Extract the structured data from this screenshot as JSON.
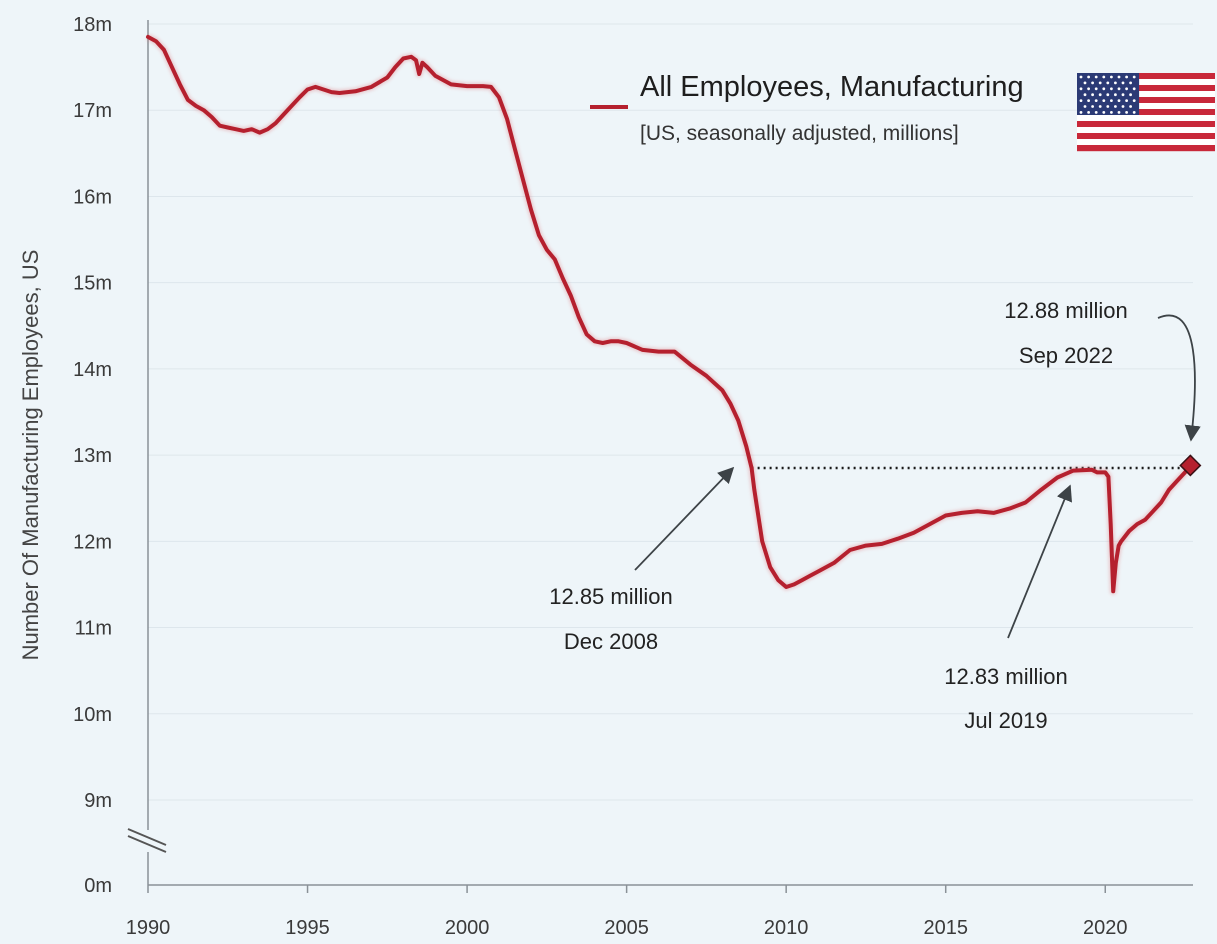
{
  "chart_data": {
    "type": "line",
    "title": "",
    "xlabel": "",
    "ylabel": "Number Of Manufacturing Employees, US",
    "xlim": [
      1990,
      2022.75
    ],
    "ylim": [
      0,
      18
    ],
    "axis_break": "between 0m and 9m",
    "y_ticks": [
      {
        "value": 0,
        "label": "0m"
      },
      {
        "value": 9,
        "label": "9m"
      },
      {
        "value": 10,
        "label": "10m"
      },
      {
        "value": 11,
        "label": "11m"
      },
      {
        "value": 12,
        "label": "12m"
      },
      {
        "value": 13,
        "label": "13m"
      },
      {
        "value": 14,
        "label": "14m"
      },
      {
        "value": 15,
        "label": "15m"
      },
      {
        "value": 16,
        "label": "16m"
      },
      {
        "value": 17,
        "label": "17m"
      },
      {
        "value": 18,
        "label": "18m"
      }
    ],
    "x_ticks": [
      {
        "value": 1990,
        "label": "1990"
      },
      {
        "value": 1995,
        "label": "1995"
      },
      {
        "value": 2000,
        "label": "2000"
      },
      {
        "value": 2005,
        "label": "2005"
      },
      {
        "value": 2010,
        "label": "2010"
      },
      {
        "value": 2015,
        "label": "2015"
      },
      {
        "value": 2020,
        "label": "2020"
      }
    ],
    "grid": "horizontal",
    "legend": {
      "placement": "top-right",
      "title": "All Employees, Manufacturing",
      "subtitle": "[US, seasonally adjusted, millions]",
      "flag_icon": "us-flag-icon"
    },
    "series": [
      {
        "name": "All Employees, Manufacturing",
        "color": "#b5202e",
        "points": [
          [
            1990.0,
            17.85
          ],
          [
            1990.25,
            17.8
          ],
          [
            1990.5,
            17.7
          ],
          [
            1990.75,
            17.5
          ],
          [
            1991.0,
            17.3
          ],
          [
            1991.25,
            17.12
          ],
          [
            1991.5,
            17.05
          ],
          [
            1991.75,
            17.0
          ],
          [
            1992.0,
            16.92
          ],
          [
            1992.25,
            16.82
          ],
          [
            1992.5,
            16.8
          ],
          [
            1992.75,
            16.78
          ],
          [
            1993.0,
            16.76
          ],
          [
            1993.25,
            16.78
          ],
          [
            1993.5,
            16.74
          ],
          [
            1993.75,
            16.78
          ],
          [
            1994.0,
            16.85
          ],
          [
            1994.25,
            16.95
          ],
          [
            1994.5,
            17.05
          ],
          [
            1994.75,
            17.15
          ],
          [
            1995.0,
            17.24
          ],
          [
            1995.25,
            17.27
          ],
          [
            1995.5,
            17.24
          ],
          [
            1995.75,
            17.21
          ],
          [
            1996.0,
            17.2
          ],
          [
            1996.5,
            17.22
          ],
          [
            1997.0,
            17.27
          ],
          [
            1997.5,
            17.38
          ],
          [
            1997.75,
            17.5
          ],
          [
            1998.0,
            17.6
          ],
          [
            1998.25,
            17.62
          ],
          [
            1998.4,
            17.58
          ],
          [
            1998.5,
            17.42
          ],
          [
            1998.6,
            17.55
          ],
          [
            1998.75,
            17.5
          ],
          [
            1999.0,
            17.4
          ],
          [
            1999.5,
            17.3
          ],
          [
            2000.0,
            17.28
          ],
          [
            2000.5,
            17.28
          ],
          [
            2000.75,
            17.27
          ],
          [
            2001.0,
            17.15
          ],
          [
            2001.25,
            16.9
          ],
          [
            2001.5,
            16.55
          ],
          [
            2001.75,
            16.2
          ],
          [
            2002.0,
            15.85
          ],
          [
            2002.25,
            15.55
          ],
          [
            2002.5,
            15.38
          ],
          [
            2002.75,
            15.27
          ],
          [
            2003.0,
            15.05
          ],
          [
            2003.25,
            14.85
          ],
          [
            2003.5,
            14.6
          ],
          [
            2003.75,
            14.4
          ],
          [
            2004.0,
            14.32
          ],
          [
            2004.25,
            14.3
          ],
          [
            2004.5,
            14.32
          ],
          [
            2004.75,
            14.32
          ],
          [
            2005.0,
            14.3
          ],
          [
            2005.5,
            14.22
          ],
          [
            2006.0,
            14.2
          ],
          [
            2006.5,
            14.2
          ],
          [
            2007.0,
            14.05
          ],
          [
            2007.5,
            13.92
          ],
          [
            2008.0,
            13.75
          ],
          [
            2008.25,
            13.6
          ],
          [
            2008.5,
            13.4
          ],
          [
            2008.75,
            13.1
          ],
          [
            2008.917,
            12.85
          ],
          [
            2009.0,
            12.6
          ],
          [
            2009.25,
            12.0
          ],
          [
            2009.5,
            11.7
          ],
          [
            2009.75,
            11.55
          ],
          [
            2010.0,
            11.47
          ],
          [
            2010.25,
            11.5
          ],
          [
            2010.5,
            11.55
          ],
          [
            2010.75,
            11.6
          ],
          [
            2011.0,
            11.65
          ],
          [
            2011.5,
            11.75
          ],
          [
            2012.0,
            11.9
          ],
          [
            2012.5,
            11.95
          ],
          [
            2013.0,
            11.97
          ],
          [
            2013.5,
            12.03
          ],
          [
            2014.0,
            12.1
          ],
          [
            2014.5,
            12.2
          ],
          [
            2015.0,
            12.3
          ],
          [
            2015.5,
            12.33
          ],
          [
            2016.0,
            12.35
          ],
          [
            2016.5,
            12.33
          ],
          [
            2017.0,
            12.38
          ],
          [
            2017.5,
            12.45
          ],
          [
            2018.0,
            12.6
          ],
          [
            2018.5,
            12.74
          ],
          [
            2019.0,
            12.82
          ],
          [
            2019.583,
            12.83
          ],
          [
            2019.75,
            12.8
          ],
          [
            2020.0,
            12.8
          ],
          [
            2020.1,
            12.75
          ],
          [
            2020.17,
            12.2
          ],
          [
            2020.25,
            11.42
          ],
          [
            2020.33,
            11.75
          ],
          [
            2020.42,
            11.95
          ],
          [
            2020.5,
            12.0
          ],
          [
            2020.75,
            12.12
          ],
          [
            2021.0,
            12.2
          ],
          [
            2021.25,
            12.25
          ],
          [
            2021.5,
            12.35
          ],
          [
            2021.75,
            12.45
          ],
          [
            2022.0,
            12.6
          ],
          [
            2022.25,
            12.7
          ],
          [
            2022.5,
            12.8
          ],
          [
            2022.667,
            12.88
          ]
        ]
      }
    ],
    "reference_line": {
      "style": "dotted",
      "y": 12.85,
      "x_start": 2008.917,
      "x_end": 2022.667
    },
    "highlight_point": {
      "x": 2022.667,
      "y": 12.88,
      "marker": "diamond"
    },
    "annotations": [
      {
        "value": "12.85 million",
        "date": "Dec 2008",
        "point": [
          2008.917,
          12.85
        ]
      },
      {
        "value": "12.83 million",
        "date": "Jul 2019",
        "point": [
          2019.583,
          12.83
        ]
      },
      {
        "value": "12.88 million",
        "date": "Sep 2022",
        "point": [
          2022.667,
          12.88
        ]
      }
    ]
  }
}
